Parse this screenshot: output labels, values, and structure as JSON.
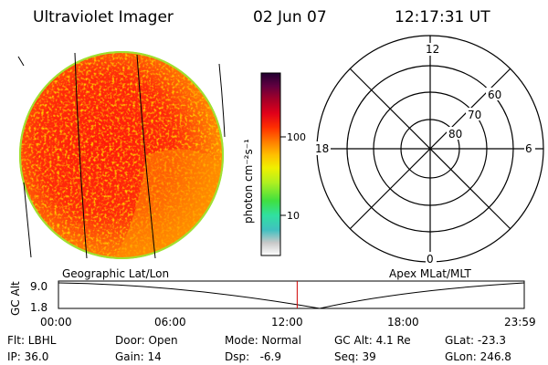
{
  "header": {
    "instrument": "Ultraviolet Imager",
    "date": "02 Jun 07",
    "time": "12:17:31 UT"
  },
  "colorbar": {
    "unit_label": "photon cm⁻²s⁻¹",
    "ticks": [
      "100",
      "10"
    ]
  },
  "polar_plot": {
    "mlt_labels": {
      "top": "12",
      "left": "18",
      "right": "6",
      "bottom": "0"
    },
    "lat_labels": [
      "60",
      "70",
      "80"
    ]
  },
  "timeline": {
    "left_label": "Geographic Lat/Lon",
    "right_label": "Apex MLat/MLT",
    "axis_title": "GC Alt",
    "y_ticks": [
      "9.0",
      "1.8"
    ],
    "x_ticks": [
      "00:00",
      "06:00",
      "12:00",
      "18:00",
      "23:59"
    ],
    "current_time_fraction": 0.5125
  },
  "status": {
    "col1": [
      "Flt: LBHL",
      "IP: 36.0"
    ],
    "col2": [
      "Door: Open",
      "Gain: 14"
    ],
    "col3": [
      "Mode: Normal",
      "Dsp:   -6.9"
    ],
    "col4": [
      "GC Alt: 4.1 Re",
      "Seq: 39"
    ],
    "col5": [
      "GLat: -23.3",
      "GLon: 246.8"
    ]
  },
  "colors": {
    "image_red": "#ff1a0a",
    "image_orange": "#ff9a00",
    "disk_edge": "#a0e030",
    "marker": "#d00000"
  }
}
